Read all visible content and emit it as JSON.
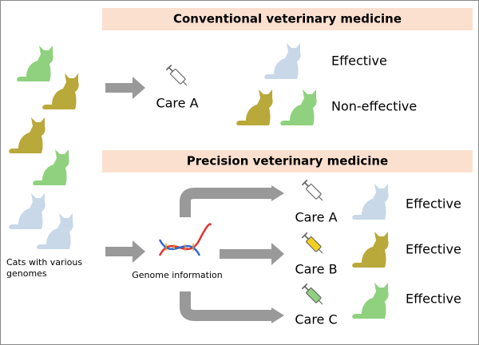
{
  "conventional": {
    "title": "Conventional veterinary medicine",
    "care": "Care A",
    "outcomes": [
      "Effective",
      "Non-effective"
    ]
  },
  "precision": {
    "title": "Precision veterinary medicine",
    "input_label": "Cats with various genomes",
    "genome_label": "Genome information",
    "branches": [
      {
        "care": "Care A",
        "outcome": "Effective"
      },
      {
        "care": "Care B",
        "outcome": "Effective"
      },
      {
        "care": "Care C",
        "outcome": "Effective"
      }
    ]
  }
}
